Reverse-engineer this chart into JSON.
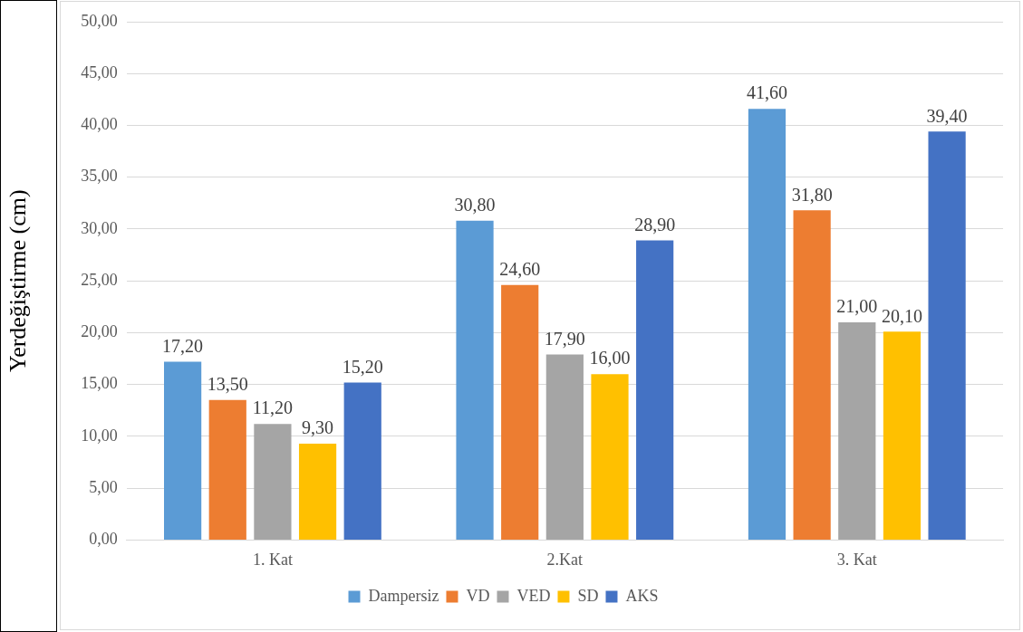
{
  "chart_data": {
    "type": "bar",
    "ylabel": "Yerdeğiştirme (cm)",
    "categories": [
      "1. Kat",
      "2.Kat",
      "3. Kat"
    ],
    "series": [
      {
        "name": "Dampersiz",
        "color": "#5b9bd5",
        "values": [
          17.2,
          30.8,
          41.6
        ],
        "value_labels": [
          "17,20",
          "30,80",
          "41,60"
        ]
      },
      {
        "name": "VD",
        "color": "#ed7d31",
        "values": [
          13.5,
          24.6,
          31.8
        ],
        "value_labels": [
          "13,50",
          "24,60",
          "31,80"
        ]
      },
      {
        "name": "VED",
        "color": "#a5a5a5",
        "values": [
          11.2,
          17.9,
          21.0
        ],
        "value_labels": [
          "11,20",
          "17,90",
          "21,00"
        ]
      },
      {
        "name": "SD",
        "color": "#ffc000",
        "values": [
          9.3,
          16.0,
          20.1
        ],
        "value_labels": [
          "9,30",
          "16,00",
          "20,10"
        ]
      },
      {
        "name": "AKS",
        "color": "#4472c4",
        "values": [
          15.2,
          28.9,
          39.4
        ],
        "value_labels": [
          "15,20",
          "28,90",
          "39,40"
        ]
      }
    ],
    "ylim": [
      0,
      50
    ],
    "yticks": [
      {
        "value": 0,
        "label": "0,00"
      },
      {
        "value": 5,
        "label": "5,00"
      },
      {
        "value": 10,
        "label": "10,00"
      },
      {
        "value": 15,
        "label": "15,00"
      },
      {
        "value": 20,
        "label": "20,00"
      },
      {
        "value": 25,
        "label": "25,00"
      },
      {
        "value": 30,
        "label": "30,00"
      },
      {
        "value": 35,
        "label": "35,00"
      },
      {
        "value": 40,
        "label": "40,00"
      },
      {
        "value": 45,
        "label": "45,00"
      },
      {
        "value": 50,
        "label": "50,00"
      }
    ],
    "grid": "y",
    "legend": "bottom"
  }
}
